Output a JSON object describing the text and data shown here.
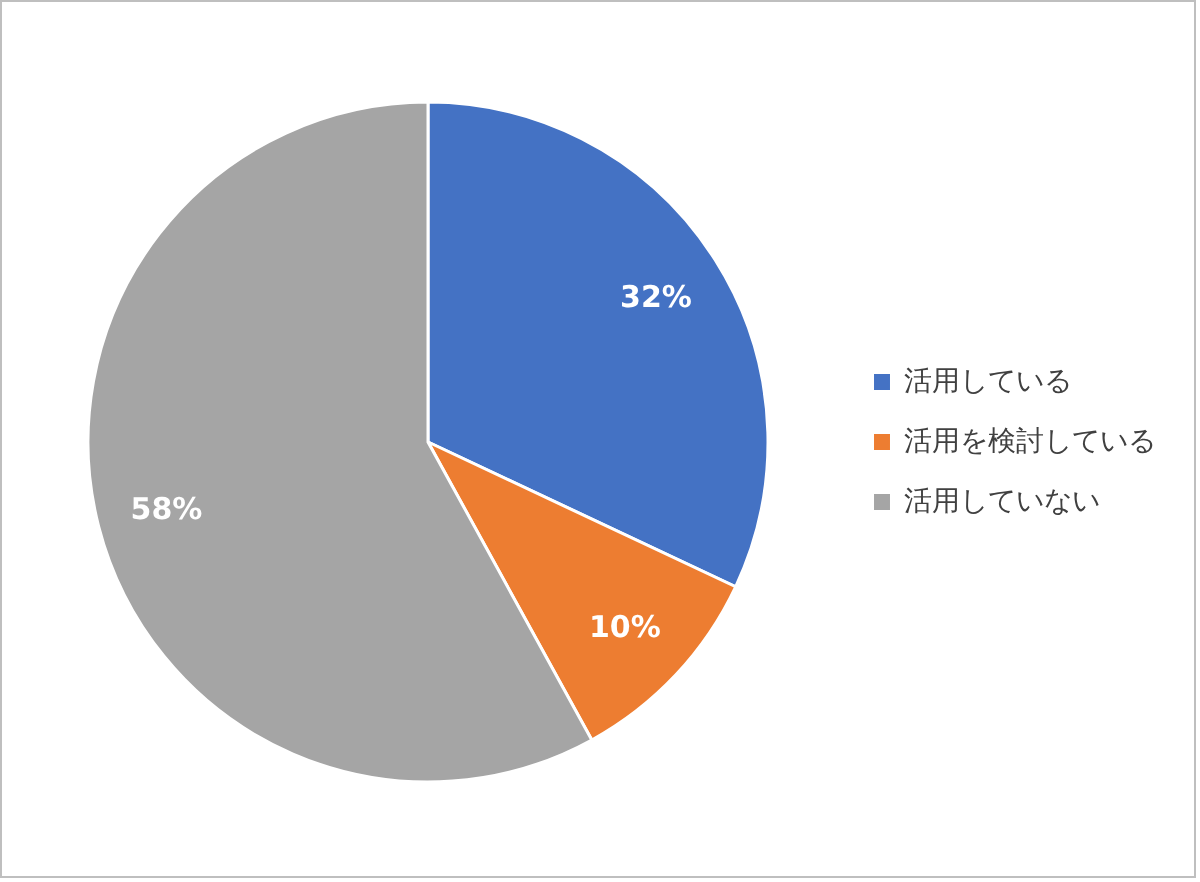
{
  "chart_data": {
    "type": "pie",
    "categories": [
      "活用している",
      "活用を検討している",
      "活用していない"
    ],
    "values": [
      32,
      10,
      58
    ],
    "colors": [
      "#4472c4",
      "#ed7d31",
      "#a5a5a5"
    ],
    "value_labels": [
      "32%",
      "10%",
      "58%"
    ],
    "legend": "right"
  }
}
